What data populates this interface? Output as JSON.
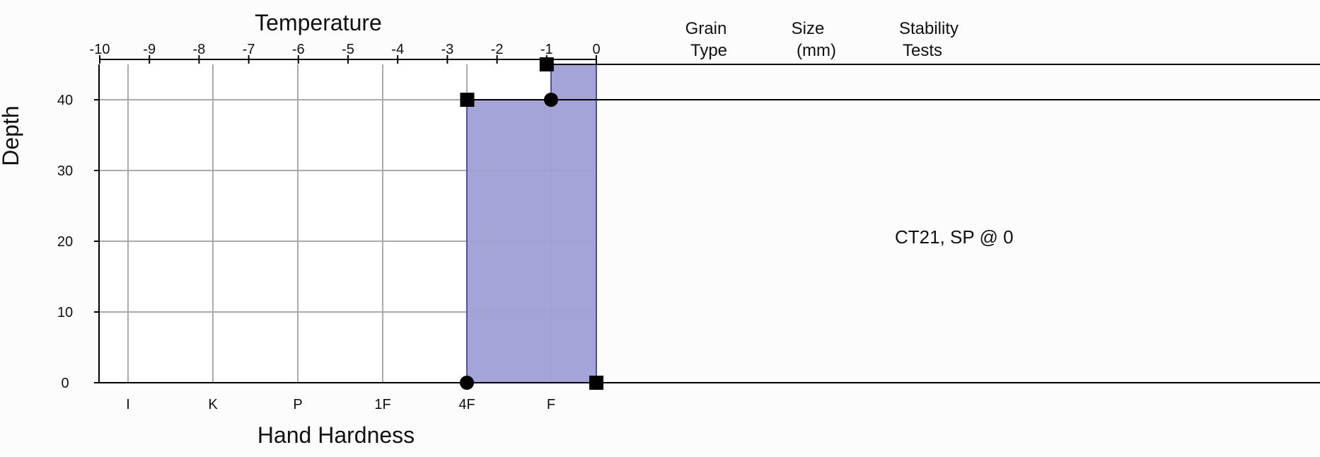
{
  "chart_data": {
    "type": "area",
    "title": "",
    "top_axis": {
      "label": "Temperature",
      "ticks": [
        -10,
        -9,
        -8,
        -7,
        -6,
        -5,
        -4,
        -3,
        -2,
        -1,
        0
      ],
      "range": [
        -10,
        0
      ]
    },
    "bottom_axis": {
      "label": "Hand Hardness",
      "ticks": [
        "I",
        "K",
        "P",
        "1F",
        "4F",
        "F"
      ]
    },
    "y_axis": {
      "label": "Depth",
      "ticks": [
        0,
        10,
        20,
        30,
        40
      ],
      "range": [
        0,
        45
      ]
    },
    "columns": [
      {
        "line1": "Grain",
        "line2": "Type"
      },
      {
        "line1": "Size",
        "line2": "(mm)"
      },
      {
        "line1": "Stability",
        "line2": "Tests"
      }
    ],
    "hardness_profile": [
      {
        "top": 45,
        "bottom": 40,
        "hardness_index": 5
      },
      {
        "top": 40,
        "bottom": 0,
        "hardness_index": 4
      }
    ],
    "temperature_points": [
      {
        "depth": 45,
        "temp": -1
      },
      {
        "depth": 40,
        "temp": -2.6
      },
      {
        "depth": 0,
        "temp": 0
      }
    ],
    "hardness_points": [
      {
        "depth": 40,
        "hardness_index": 5
      },
      {
        "depth": 0,
        "hardness_index": 4
      }
    ],
    "layer_boundaries": [
      45,
      40,
      0
    ],
    "stability_notes": [
      {
        "depth": 20,
        "text": "CT21, SP @ 0"
      }
    ],
    "colors": {
      "fill": "#a09fd6",
      "fill_stroke": "#4f4f9a",
      "grid": "#aaaaaa",
      "axis": "#000000",
      "marker": "#000000"
    }
  }
}
